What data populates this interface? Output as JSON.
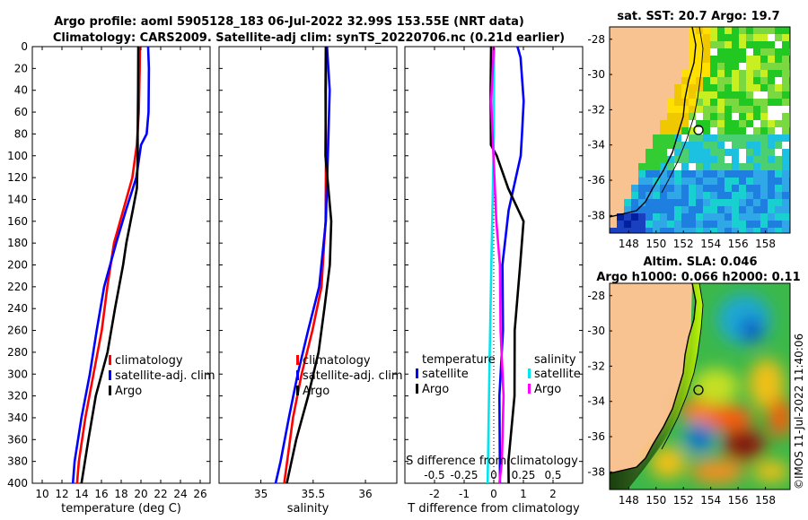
{
  "title_line1": "Argo profile: aoml 5905128_183 06-Jul-2022 32.99S 153.55E (NRT data)",
  "title_line2": "Climatology: CARS2009. Satellite-adj clim: synTS_20220706.nc (0.21d earlier)",
  "map_sst_title": "sat. SST: 20.7 Argo: 19.7",
  "map_sla_title1": "Altim. SLA: 0.046",
  "map_sla_title2": "Argo h1000: 0.066 h2000: 0.11",
  "watermark": "©IMOS 11-Jul-2022 11:40:06",
  "colors": {
    "climatology": "#ff0000",
    "satellite": "#0000ff",
    "argo": "#000000",
    "s_satellite": "#00e5ee",
    "s_argo": "#ff00ff",
    "land": "#f8c391"
  },
  "chart_data": [
    {
      "type": "line",
      "name": "temperature",
      "xlabel": "temperature (deg C)",
      "ylabel": "",
      "xlim": [
        9,
        27
      ],
      "ylim": [
        400,
        0
      ],
      "xticks": [
        10,
        12,
        14,
        16,
        18,
        20,
        22,
        24,
        26
      ],
      "yticks": [
        0,
        20,
        40,
        60,
        80,
        100,
        120,
        140,
        160,
        180,
        200,
        220,
        240,
        260,
        280,
        300,
        320,
        340,
        360,
        380,
        400
      ],
      "series": [
        {
          "name": "climatology",
          "depth": [
            0,
            20,
            60,
            90,
            120,
            150,
            180,
            220,
            260,
            300,
            340,
            380,
            400
          ],
          "values": [
            19.9,
            19.9,
            19.8,
            19.6,
            19.1,
            18.2,
            17.3,
            16.6,
            16.0,
            15.2,
            14.4,
            13.7,
            13.5
          ]
        },
        {
          "name": "satellite-adj. clim",
          "depth": [
            0,
            20,
            60,
            80,
            90,
            120,
            150,
            180,
            220,
            260,
            300,
            340,
            380,
            400
          ],
          "values": [
            20.7,
            20.8,
            20.8,
            20.6,
            20.0,
            19.5,
            18.5,
            17.5,
            16.3,
            15.5,
            14.8,
            14.0,
            13.3,
            13.1
          ]
        },
        {
          "name": "Argo",
          "depth": [
            0,
            40,
            80,
            100,
            130,
            150,
            180,
            200,
            240,
            280,
            320,
            360,
            400
          ],
          "values": [
            19.7,
            19.7,
            19.7,
            19.7,
            19.6,
            19.2,
            18.5,
            18.2,
            17.4,
            16.6,
            15.4,
            14.7,
            14.0
          ]
        }
      ],
      "legend": [
        "climatology",
        "satellite-adj. clim",
        "Argo"
      ]
    },
    {
      "type": "line",
      "name": "salinity",
      "xlabel": "salinity",
      "ylabel": "",
      "xlim": [
        34.6,
        36.3
      ],
      "ylim": [
        400,
        0
      ],
      "xticks": [
        35,
        35.5,
        36
      ],
      "series": [
        {
          "name": "climatology",
          "depth": [
            0,
            40,
            100,
            160,
            220,
            260,
            300,
            340,
            380,
            400
          ],
          "values": [
            35.62,
            35.62,
            35.62,
            35.62,
            35.58,
            35.49,
            35.39,
            35.31,
            35.25,
            35.22
          ]
        },
        {
          "name": "satellite-adj. clim",
          "depth": [
            0,
            40,
            100,
            160,
            220,
            260,
            300,
            340,
            380,
            400
          ],
          "values": [
            35.63,
            35.66,
            35.64,
            35.62,
            35.56,
            35.45,
            35.35,
            35.27,
            35.19,
            35.14
          ]
        },
        {
          "name": "Argo",
          "depth": [
            0,
            40,
            100,
            160,
            200,
            240,
            280,
            320,
            360,
            400
          ],
          "values": [
            35.62,
            35.62,
            35.62,
            35.67,
            35.66,
            35.61,
            35.55,
            35.45,
            35.34,
            35.25
          ]
        }
      ],
      "legend": [
        "climatology",
        "satellite-adj. clim",
        "Argo"
      ]
    },
    {
      "type": "line",
      "name": "difference from climatology",
      "xlabel": "T difference from climatology",
      "xlabel_top": "S difference from climatology",
      "xlim": [
        -3,
        3
      ],
      "ylim": [
        400,
        0
      ],
      "xticks": [
        -2,
        -1,
        0,
        1,
        2
      ],
      "xticks_s": [
        "-0.5",
        "-0.25",
        "0",
        "0.25",
        "0.5"
      ],
      "series": [
        {
          "name": "T satellite",
          "depth": [
            0,
            10,
            50,
            80,
            100,
            150,
            200,
            260,
            320,
            400
          ],
          "values": [
            0.8,
            0.9,
            1.0,
            0.95,
            0.9,
            0.5,
            0.3,
            0.3,
            0.2,
            0.2
          ]
        },
        {
          "name": "T Argo",
          "depth": [
            0,
            40,
            90,
            100,
            130,
            160,
            200,
            260,
            320,
            380,
            400
          ],
          "values": [
            -0.1,
            -0.1,
            -0.1,
            0.1,
            0.5,
            1.0,
            0.9,
            0.7,
            0.7,
            0.5,
            0.5
          ]
        },
        {
          "name": "S satellite",
          "depth": [
            0,
            100,
            200,
            300,
            400
          ],
          "values": [
            0.0,
            0.0,
            -0.02,
            -0.04,
            -0.05
          ]
        },
        {
          "name": "S Argo",
          "depth": [
            0,
            50,
            100,
            160,
            200,
            260,
            320,
            380,
            400
          ],
          "values": [
            0.0,
            -0.02,
            0.0,
            0.02,
            0.05,
            0.06,
            0.08,
            0.07,
            0.05
          ]
        }
      ],
      "legend_left": [
        "temperature",
        "satellite",
        "Argo"
      ],
      "legend_right": [
        "salinity",
        "satellite",
        "Argo"
      ]
    },
    {
      "type": "heatmap",
      "name": "sat SST map",
      "xticks": [
        148,
        150,
        152,
        154,
        156,
        158
      ],
      "yticks": [
        -28,
        -30,
        -32,
        -34,
        -36,
        -38
      ],
      "marker": {
        "lon": 153.55,
        "lat": -32.99
      }
    },
    {
      "type": "heatmap",
      "name": "altimetry SLA map",
      "xticks": [
        148,
        150,
        152,
        154,
        156,
        158
      ],
      "yticks": [
        -28,
        -30,
        -32,
        -34,
        -36,
        -38
      ],
      "marker": {
        "lon": 153.55,
        "lat": -32.99
      }
    }
  ]
}
